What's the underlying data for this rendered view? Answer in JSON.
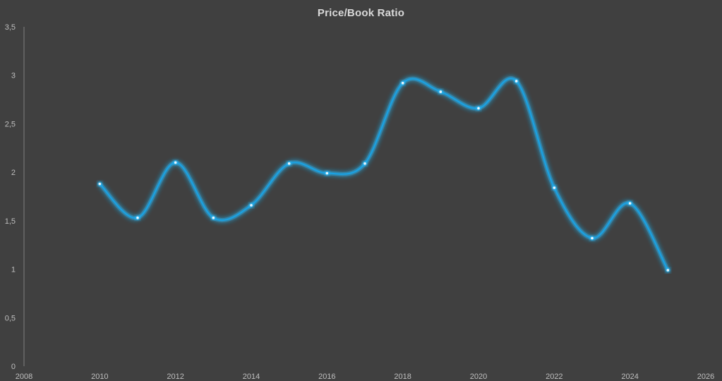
{
  "chart_data": {
    "type": "line",
    "title": "Price/Book Ratio",
    "xlabel": "",
    "ylabel": "",
    "xlim": [
      2008,
      2026
    ],
    "ylim": [
      0,
      3.5
    ],
    "x_ticks": [
      2008,
      2010,
      2012,
      2014,
      2016,
      2018,
      2020,
      2022,
      2024,
      2026
    ],
    "y_ticks": [
      0,
      0.5,
      1,
      1.5,
      2,
      2.5,
      3,
      3.5
    ],
    "y_tick_labels": [
      "0",
      "0,5",
      "1",
      "1,5",
      "2",
      "2,5",
      "3",
      "3,5"
    ],
    "x_tick_labels": [
      "2008",
      "2010",
      "2012",
      "2014",
      "2016",
      "2018",
      "2020",
      "2022",
      "2024",
      "2026"
    ],
    "grid": false,
    "smooth": true,
    "series": [
      {
        "x": [
          2010,
          2011,
          2012,
          2013,
          2014,
          2015,
          2016,
          2017,
          2018,
          2019,
          2020,
          2021,
          2022,
          2023,
          2024,
          2025
        ],
        "values": [
          1.88,
          1.53,
          2.1,
          1.53,
          1.66,
          2.09,
          1.99,
          2.09,
          2.92,
          2.83,
          2.66,
          2.94,
          1.84,
          1.32,
          1.68,
          0.99
        ],
        "color": "#1ba1e2"
      }
    ],
    "colors": {
      "background": "#404040",
      "axis": "#7f7f7f",
      "text": "#bfbfbf",
      "title": "#d9d9d9",
      "line": "#1ba1e2",
      "glow": "#2fb8f5"
    }
  }
}
